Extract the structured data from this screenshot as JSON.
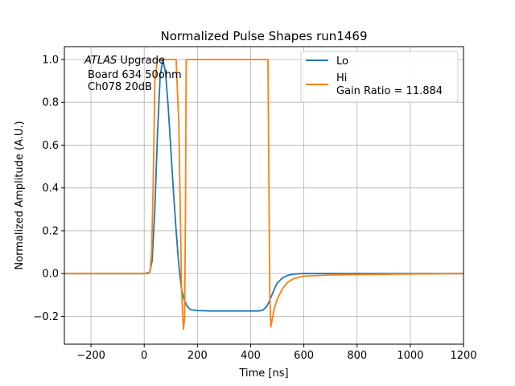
{
  "chart_data": {
    "type": "line",
    "title": "Normalized Pulse Shapes run1469",
    "xlabel": "Time [ns]",
    "ylabel": "Normalized Amplitude (A.U.)",
    "xlim": [
      -300,
      1200
    ],
    "ylim": [
      -0.33,
      1.06
    ],
    "xticks": [
      -200,
      0,
      200,
      400,
      600,
      800,
      1000,
      1200
    ],
    "yticks": [
      -0.2,
      0.0,
      0.2,
      0.4,
      0.6,
      0.8,
      1.0
    ],
    "xtick_labels": [
      "−200",
      "0",
      "200",
      "400",
      "600",
      "800",
      "1000",
      "1200"
    ],
    "ytick_labels": [
      "−0.2",
      "0.0",
      "0.2",
      "0.4",
      "0.6",
      "0.8",
      "1.0"
    ],
    "grid": true,
    "legend_position": "top-right",
    "annotation": {
      "line1_italic": "ATLAS",
      "line1_rest": " Upgrade",
      "line2": "Board 634 50ohm",
      "line3": "Ch078 20dB"
    },
    "series": [
      {
        "name": "Lo",
        "color": "#1f77b4",
        "x": [
          -300,
          0,
          20,
          30,
          40,
          50,
          60,
          70,
          80,
          90,
          100,
          110,
          120,
          130,
          140,
          150,
          160,
          170,
          180,
          200,
          250,
          300,
          350,
          400,
          430,
          445,
          460,
          470,
          480,
          490,
          500,
          520,
          540,
          560,
          580,
          600,
          700,
          800,
          1000,
          1200
        ],
        "y": [
          0,
          0,
          0.005,
          0.06,
          0.3,
          0.65,
          0.92,
          1.0,
          0.94,
          0.78,
          0.58,
          0.38,
          0.2,
          0.04,
          -0.07,
          -0.12,
          -0.15,
          -0.165,
          -0.17,
          -0.173,
          -0.175,
          -0.175,
          -0.175,
          -0.175,
          -0.175,
          -0.172,
          -0.155,
          -0.13,
          -0.1,
          -0.07,
          -0.045,
          -0.02,
          -0.008,
          -0.003,
          -0.001,
          0,
          0,
          0,
          0,
          0
        ]
      },
      {
        "name": "Hi\n Gain Ratio = 11.884",
        "color": "#ff7f0e",
        "x": [
          -300,
          0,
          15,
          22,
          28,
          35,
          40,
          50,
          60,
          70,
          100,
          120,
          130,
          135,
          140,
          145,
          148,
          152,
          155,
          158,
          162,
          170,
          200,
          300,
          400,
          465,
          468,
          472,
          476,
          480,
          490,
          500,
          520,
          540,
          560,
          580,
          600,
          700,
          800,
          1000,
          1200
        ],
        "y": [
          0,
          0,
          0,
          0.01,
          0.1,
          0.5,
          0.9,
          1.0,
          1.0,
          1.0,
          1.0,
          1.0,
          0.7,
          0.35,
          -0.05,
          -0.2,
          -0.26,
          -0.2,
          0.3,
          1.0,
          1.0,
          1.0,
          1.0,
          1.0,
          1.0,
          1.0,
          0.5,
          -0.1,
          -0.25,
          -0.22,
          -0.16,
          -0.12,
          -0.07,
          -0.04,
          -0.025,
          -0.017,
          -0.012,
          -0.007,
          -0.005,
          -0.002,
          0
        ]
      }
    ]
  }
}
